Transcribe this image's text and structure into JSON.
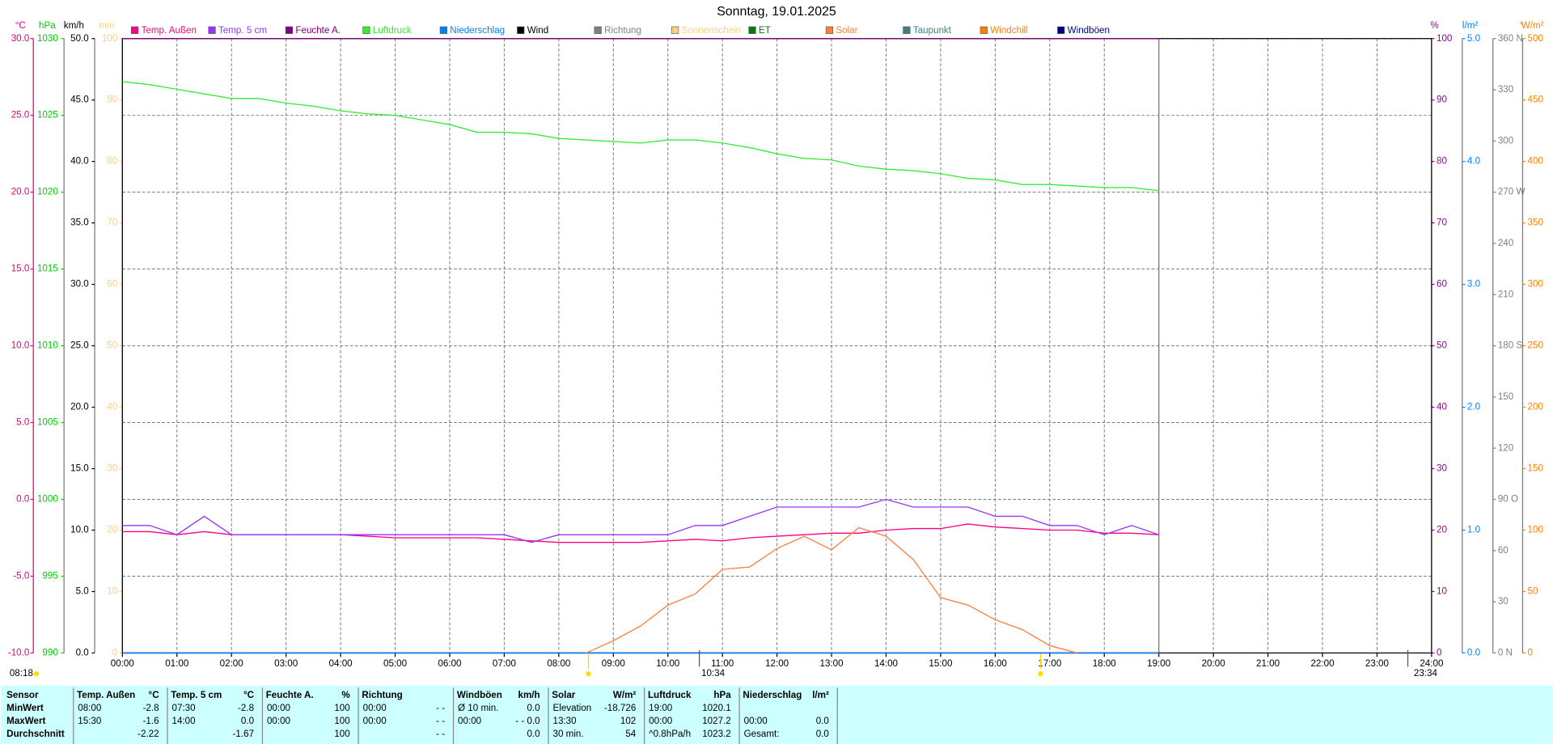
{
  "chart_data": {
    "type": "line",
    "title": "Sonntag, 19.01.2025",
    "grid": true,
    "x": [
      0,
      0.5,
      1,
      1.5,
      2,
      2.5,
      3,
      3.5,
      4,
      4.5,
      5,
      5.5,
      6,
      6.5,
      7,
      7.5,
      8,
      8.5,
      9,
      9.5,
      10,
      10.5,
      11,
      11.5,
      12,
      12.5,
      13,
      13.5,
      14,
      14.5,
      15,
      15.5,
      16,
      16.5,
      17,
      17.5,
      18,
      18.5,
      19
    ],
    "xlim": [
      0,
      24
    ],
    "xticks": [
      {
        "value": 0,
        "label": "00:00"
      },
      {
        "value": 1,
        "label": "01:00"
      },
      {
        "value": 2,
        "label": "02:00"
      },
      {
        "value": 3,
        "label": "03:00"
      },
      {
        "value": 4,
        "label": "04:00"
      },
      {
        "value": 5,
        "label": "05:00"
      },
      {
        "value": 6,
        "label": "06:00"
      },
      {
        "value": 7,
        "label": "07:00"
      },
      {
        "value": 8,
        "label": "08:00"
      },
      {
        "value": 9,
        "label": "09:00"
      },
      {
        "value": 10,
        "label": "10:00"
      },
      {
        "value": 11,
        "label": "11:00"
      },
      {
        "value": 12,
        "label": "12:00"
      },
      {
        "value": 13,
        "label": "13:00"
      },
      {
        "value": 14,
        "label": "14:00"
      },
      {
        "value": 15,
        "label": "15:00"
      },
      {
        "value": 16,
        "label": "16:00"
      },
      {
        "value": 17,
        "label": "17:00"
      },
      {
        "value": 18,
        "label": "18:00"
      },
      {
        "value": 19,
        "label": "19:00"
      },
      {
        "value": 20,
        "label": "20:00"
      },
      {
        "value": 21,
        "label": "21:00"
      },
      {
        "value": 22,
        "label": "22:00"
      },
      {
        "value": 23,
        "label": "23:00"
      },
      {
        "value": 24,
        "label": "24:00"
      }
    ],
    "axes": [
      {
        "unit": "°C",
        "color": "#e0007a",
        "side": "left",
        "ylim": [
          -10,
          30
        ],
        "yticks": [
          {
            "value": -10,
            "label": "-10.0"
          },
          {
            "value": -5,
            "label": "-5.0"
          },
          {
            "value": 0,
            "label": "0.0"
          },
          {
            "value": 5,
            "label": "5.0"
          },
          {
            "value": 10,
            "label": "10.0"
          },
          {
            "value": 15,
            "label": "15.0"
          },
          {
            "value": 20,
            "label": "20.0"
          },
          {
            "value": 25,
            "label": "25.0"
          },
          {
            "value": 30,
            "label": "30.0"
          }
        ]
      },
      {
        "unit": "hPa",
        "color": "#00cc00",
        "side": "left",
        "ylim": [
          990,
          1030
        ],
        "yticks": [
          990,
          995,
          1000,
          1005,
          1010,
          1015,
          1020,
          1025,
          1030
        ]
      },
      {
        "unit": "km/h",
        "color": "#000000",
        "side": "left",
        "ylim": [
          0,
          50
        ],
        "yticks": [
          {
            "value": 0,
            "label": "0.0"
          },
          {
            "value": 5,
            "label": "5.0"
          },
          {
            "value": 10,
            "label": "10.0"
          },
          {
            "value": 15,
            "label": "15.0"
          },
          {
            "value": 20,
            "label": "20.0"
          },
          {
            "value": 25,
            "label": "25.0"
          },
          {
            "value": 30,
            "label": "30.0"
          },
          {
            "value": 35,
            "label": "35.0"
          },
          {
            "value": 40,
            "label": "40.0"
          },
          {
            "value": 45,
            "label": "45.0"
          },
          {
            "value": 50,
            "label": "50.0"
          }
        ]
      },
      {
        "unit": "mm",
        "color": "#ffcc80",
        "side": "left",
        "ylim": [
          0,
          100
        ],
        "yticks": [
          0,
          10,
          20,
          30,
          40,
          50,
          60,
          70,
          80,
          90,
          100
        ]
      },
      {
        "unit": "%",
        "color": "#990099",
        "side": "right",
        "ylim": [
          0,
          100
        ],
        "yticks": [
          0,
          10,
          20,
          30,
          40,
          50,
          60,
          70,
          80,
          90,
          100
        ]
      },
      {
        "unit": "l/m²",
        "color": "#0080ff",
        "side": "right",
        "ylim": [
          0,
          5
        ],
        "yticks": [
          {
            "value": 0,
            "label": "0.0"
          },
          {
            "value": 1,
            "label": "1.0"
          },
          {
            "value": 2,
            "label": "2.0"
          },
          {
            "value": 3,
            "label": "3.0"
          },
          {
            "value": 4,
            "label": "4.0"
          },
          {
            "value": 5,
            "label": "5.0"
          }
        ]
      },
      {
        "unit": "°",
        "color": "#808080",
        "side": "right",
        "ylim": [
          0,
          360
        ],
        "yticks": [
          {
            "value": 0,
            "label": "0 N"
          },
          30,
          60,
          {
            "value": 90,
            "label": "90 O"
          },
          120,
          150,
          {
            "value": 180,
            "label": "180 S"
          },
          210,
          240,
          {
            "value": 270,
            "label": "270 W"
          },
          300,
          330,
          {
            "value": 360,
            "label": "360 N"
          }
        ]
      },
      {
        "unit": "W/m²",
        "color": "#ff8000",
        "side": "right",
        "ylim": [
          0,
          500
        ],
        "yticks": [
          0,
          50,
          100,
          150,
          200,
          250,
          300,
          350,
          400,
          450,
          500
        ]
      }
    ],
    "series": [
      {
        "name": "Temp. Außen",
        "color": "#ff0080",
        "axis": "°C",
        "values": [
          -2.1,
          -2.1,
          -2.3,
          -2.1,
          -2.3,
          -2.3,
          -2.3,
          -2.3,
          -2.3,
          -2.4,
          -2.5,
          -2.5,
          -2.5,
          -2.5,
          -2.6,
          -2.7,
          -2.8,
          -2.8,
          -2.8,
          -2.8,
          -2.7,
          -2.6,
          -2.7,
          -2.5,
          -2.4,
          -2.3,
          -2.2,
          -2.2,
          -2.0,
          -1.9,
          -1.9,
          -1.6,
          -1.8,
          -1.9,
          -2.0,
          -2.0,
          -2.2,
          -2.2,
          -2.3
        ]
      },
      {
        "name": "Temp. 5 cm",
        "color": "#9933ff",
        "axis": "°C",
        "values": [
          -1.7,
          -1.7,
          -2.3,
          -1.1,
          -2.3,
          -2.3,
          -2.3,
          -2.3,
          -2.3,
          -2.3,
          -2.3,
          -2.3,
          -2.3,
          -2.3,
          -2.3,
          -2.8,
          -2.3,
          -2.3,
          -2.3,
          -2.3,
          -2.3,
          -1.7,
          -1.7,
          -1.1,
          -0.5,
          -0.5,
          -0.5,
          -0.5,
          0.0,
          -0.5,
          -0.5,
          -0.5,
          -1.1,
          -1.1,
          -1.7,
          -1.7,
          -2.3,
          -1.7,
          -2.3
        ]
      },
      {
        "name": "Feuchte A.",
        "color": "#800080",
        "axis": "%",
        "values": [
          100,
          100,
          100,
          100,
          100,
          100,
          100,
          100,
          100,
          100,
          100,
          100,
          100,
          100,
          100,
          100,
          100,
          100,
          100,
          100,
          100,
          100,
          100,
          100,
          100,
          100,
          100,
          100,
          100,
          100,
          100,
          100,
          100,
          100,
          100,
          100,
          100,
          100,
          100
        ]
      },
      {
        "name": "Luftdruck",
        "color": "#33ee33",
        "axis": "hPa",
        "values": [
          1027.2,
          1027.0,
          1026.7,
          1026.4,
          1026.1,
          1026.1,
          1025.8,
          1025.6,
          1025.3,
          1025.1,
          1025.0,
          1024.7,
          1024.4,
          1023.9,
          1023.9,
          1023.8,
          1023.5,
          1023.4,
          1023.3,
          1023.2,
          1023.4,
          1023.4,
          1023.2,
          1022.9,
          1022.5,
          1022.2,
          1022.1,
          1021.7,
          1021.5,
          1021.4,
          1021.2,
          1020.9,
          1020.8,
          1020.5,
          1020.5,
          1020.4,
          1020.3,
          1020.3,
          1020.1
        ]
      },
      {
        "name": "Niederschlag",
        "color": "#0080ff",
        "axis": "l/m²",
        "values": [
          0,
          0,
          0,
          0,
          0,
          0,
          0,
          0,
          0,
          0,
          0,
          0,
          0,
          0,
          0,
          0,
          0,
          0,
          0,
          0,
          0,
          0,
          0,
          0,
          0,
          0,
          0,
          0,
          0,
          0,
          0,
          0,
          0,
          0,
          0,
          0,
          0,
          0,
          0
        ]
      },
      {
        "name": "Wind",
        "color": "#000000"
      },
      {
        "name": "Richtung",
        "color": "#808080"
      },
      {
        "name": "Sonnenschein",
        "color": "#ffd080"
      },
      {
        "name": "ET",
        "color": "#008000"
      },
      {
        "name": "Solar",
        "color": "#ff8040",
        "axis": "W/m²",
        "values": [
          null,
          null,
          null,
          null,
          null,
          null,
          null,
          null,
          null,
          null,
          null,
          null,
          null,
          null,
          null,
          null,
          null,
          0,
          10,
          22,
          39,
          48,
          68,
          70,
          85,
          95,
          84,
          102,
          95,
          76,
          45,
          39,
          27,
          19,
          6,
          0,
          null,
          null,
          null
        ]
      },
      {
        "name": "Taupunkt",
        "color": "#408080"
      },
      {
        "name": "Windchill",
        "color": "#ff8000"
      },
      {
        "name": "Windböen",
        "color": "#000080",
        "axis": "km/h",
        "values": [
          0,
          0,
          0,
          0,
          0,
          0,
          0,
          0,
          0,
          0,
          0,
          0,
          0,
          0,
          0,
          0,
          0,
          0,
          0,
          0,
          0,
          0,
          0,
          0,
          0,
          0,
          0,
          0,
          0,
          0,
          0,
          0,
          0,
          0,
          0,
          0,
          0,
          0,
          0
        ]
      }
    ],
    "footer_times": [
      "08:18",
      "10:34",
      "23:34"
    ]
  },
  "table": {
    "row_labels": [
      "Sensor",
      "MinWert",
      "MaxWert",
      "Durchschnitt"
    ],
    "columns": [
      {
        "name": "Temp. Außen",
        "unit": "°C",
        "rows": [
          [
            "08:00",
            "-2.8"
          ],
          [
            "15:30",
            "-1.6"
          ],
          [
            null,
            "-2.22"
          ]
        ]
      },
      {
        "name": "Temp. 5 cm",
        "unit": "°C",
        "rows": [
          [
            "07:30",
            "-2.8"
          ],
          [
            "14:00",
            "0.0"
          ],
          [
            null,
            "-1.67"
          ]
        ]
      },
      {
        "name": "Feuchte A.",
        "unit": "%",
        "rows": [
          [
            "00:00",
            "100"
          ],
          [
            "00:00",
            "100"
          ],
          [
            null,
            "100"
          ]
        ]
      },
      {
        "name": "Richtung",
        "rows": [
          [
            "00:00",
            "- -"
          ],
          [
            "00:00",
            "- -"
          ],
          [
            null,
            "- -"
          ]
        ]
      },
      {
        "name": "Windböen",
        "unit": "km/h",
        "rows": [
          [
            "Ø 10 min.",
            "0.0"
          ],
          [
            "00:00",
            "- - 0.0"
          ],
          [
            null,
            "0.0"
          ]
        ]
      },
      {
        "name": "Solar",
        "unit": "W/m²",
        "rows": [
          [
            "Elevation",
            "-18.726"
          ],
          [
            "13:30",
            "102"
          ],
          [
            "30 min.",
            "54"
          ]
        ]
      },
      {
        "name": "Luftdruck",
        "unit": "hPa",
        "rows": [
          [
            "19:00",
            "1020.1"
          ],
          [
            "00:00",
            "1027.2"
          ],
          [
            "^0.8hPa/h",
            "1023.2"
          ]
        ]
      },
      {
        "name": "Niederschlag",
        "unit": "l/m²",
        "rows": [
          [
            null,
            null
          ],
          [
            "00:00",
            "0.0"
          ],
          [
            "Gesamt:",
            "0.0"
          ]
        ]
      }
    ]
  }
}
